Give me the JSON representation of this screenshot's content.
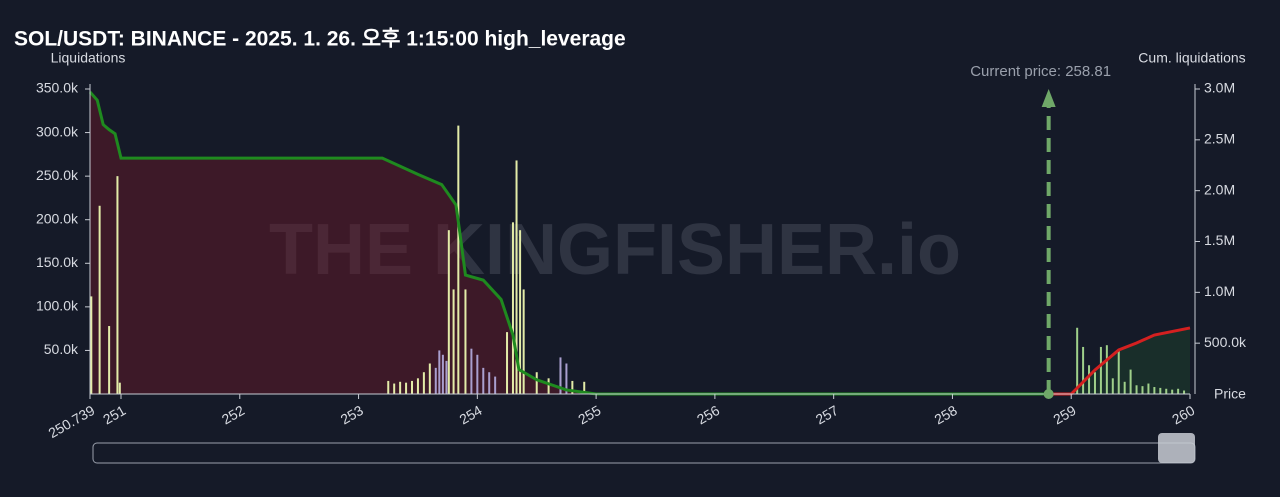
{
  "chart_data": {
    "type": "bar",
    "title": "SOL/USDT: BINANCE - 2025. 1. 26. 오후 1:15:00 high_leverage",
    "ylabel": "Liquidations",
    "y2label": "Cum. liquidations",
    "xlabel": "Price",
    "watermark": "THE KINGFISHER.io",
    "xlim": [
      250.739,
      260
    ],
    "xticks": [
      250.739,
      251,
      252,
      253,
      254,
      255,
      256,
      257,
      258,
      259,
      260
    ],
    "ylim": [
      0,
      350000
    ],
    "yticks": [
      {
        "value": 50000,
        "label": "50.0k"
      },
      {
        "value": 100000,
        "label": "100.0k"
      },
      {
        "value": 150000,
        "label": "150.0k"
      },
      {
        "value": 200000,
        "label": "200.0k"
      },
      {
        "value": 250000,
        "label": "250.0k"
      },
      {
        "value": 300000,
        "label": "300.0k"
      },
      {
        "value": 350000,
        "label": "350.0k"
      }
    ],
    "y2lim": [
      0,
      3000000
    ],
    "y2ticks": [
      {
        "value": 500000,
        "label": "500.0k"
      },
      {
        "value": 1000000,
        "label": "1.0M"
      },
      {
        "value": 1500000,
        "label": "1.5M"
      },
      {
        "value": 2000000,
        "label": "2.0M"
      },
      {
        "value": 2500000,
        "label": "2.5M"
      },
      {
        "value": 3000000,
        "label": "3.0M"
      }
    ],
    "current_price": {
      "value": 258.81,
      "label": "Current price: 258.81"
    },
    "series": [
      {
        "type": "bar",
        "color": "#e3eca8",
        "x": [
          250.75,
          250.82,
          250.9,
          250.97,
          250.99,
          253.25,
          253.3,
          253.35,
          253.4,
          253.45,
          253.5,
          253.55,
          253.6,
          253.76,
          253.8,
          253.84,
          253.9,
          254.25,
          254.3,
          254.33,
          254.36,
          254.39,
          254.5,
          254.6,
          254.7,
          254.8,
          254.9
        ],
        "values": [
          112000,
          216000,
          78000,
          250000,
          13000,
          15000,
          12000,
          14000,
          13000,
          15000,
          18000,
          25000,
          35000,
          188000,
          120000,
          308000,
          120000,
          71000,
          197000,
          268000,
          188000,
          120000,
          25000,
          18000,
          30000,
          15000,
          14000
        ]
      },
      {
        "type": "bar",
        "color": "#a99fcf",
        "x": [
          253.65,
          253.68,
          253.71,
          253.74,
          253.95,
          254.0,
          254.05,
          254.1,
          254.15,
          254.7,
          254.75
        ],
        "values": [
          30000,
          50000,
          45000,
          38000,
          52000,
          45000,
          30000,
          25000,
          20000,
          42000,
          35000
        ]
      },
      {
        "type": "bar",
        "color": "#9fd08a",
        "x": [
          259.05,
          259.1,
          259.15,
          259.2,
          259.25,
          259.3,
          259.35,
          259.4,
          259.45,
          259.5,
          259.55,
          259.6,
          259.65,
          259.7,
          259.75,
          259.8,
          259.85,
          259.9,
          259.95
        ],
        "values": [
          76000,
          54000,
          33000,
          25000,
          54000,
          56000,
          18000,
          50000,
          14000,
          28000,
          10000,
          9000,
          12000,
          8000,
          7000,
          6000,
          5000,
          6000,
          4000
        ]
      },
      {
        "type": "line",
        "axis": "y2",
        "color": "#1f8a1f",
        "fill": "rgba(110,25,40,0.45)",
        "x": [
          250.739,
          250.8,
          250.85,
          250.9,
          250.95,
          251,
          253.2,
          253.5,
          253.7,
          253.82,
          253.85,
          253.9,
          254.05,
          254.2,
          254.3,
          254.35,
          254.5,
          254.75,
          255,
          258.81
        ],
        "values": [
          2970000,
          2890000,
          2650000,
          2600000,
          2560000,
          2320000,
          2320000,
          2160000,
          2060000,
          1860000,
          1610000,
          1170000,
          1120000,
          930000,
          580000,
          240000,
          140000,
          40000,
          0,
          0
        ]
      },
      {
        "type": "line",
        "axis": "y2",
        "color": "#d42020",
        "fill": "rgba(30,70,45,0.45)",
        "x": [
          258.81,
          259,
          259.2,
          259.4,
          259.55,
          259.7,
          260
        ],
        "values": [
          0,
          0,
          236000,
          433000,
          502000,
          580000,
          650000
        ]
      }
    ]
  }
}
